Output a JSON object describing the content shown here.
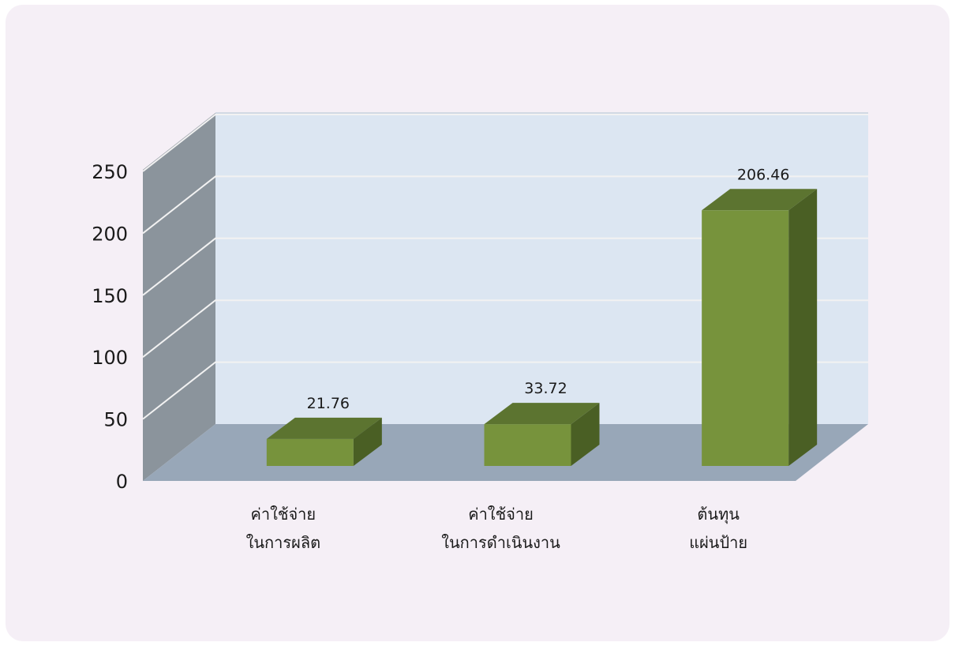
{
  "chart_data": {
    "type": "bar",
    "categories": [
      [
        "ค่าใช้จ่าย",
        "ในการผลิต"
      ],
      [
        "ค่าใช้จ่าย",
        "ในการดำเนินงาน"
      ],
      [
        "ต้นทุน",
        "แผ่นป้าย"
      ]
    ],
    "series": [
      {
        "values": [
          21.76,
          33.72,
          206.46
        ]
      }
    ],
    "data_labels": [
      "21.76",
      "33.72",
      "206.46"
    ],
    "ylim": [
      0,
      250
    ],
    "yticks": [
      "0",
      "50",
      "100",
      "150",
      "200",
      "250"
    ],
    "grid": true,
    "style": "3d-column",
    "colors": {
      "bar_front": "#77933c",
      "bar_top": "#5c7430",
      "bar_side": "#4a5f24",
      "back_wall": "#dce6f2",
      "side_wall": "#8b949c",
      "floor": "#98a7b8",
      "gridline": "#f2f2f2"
    }
  }
}
